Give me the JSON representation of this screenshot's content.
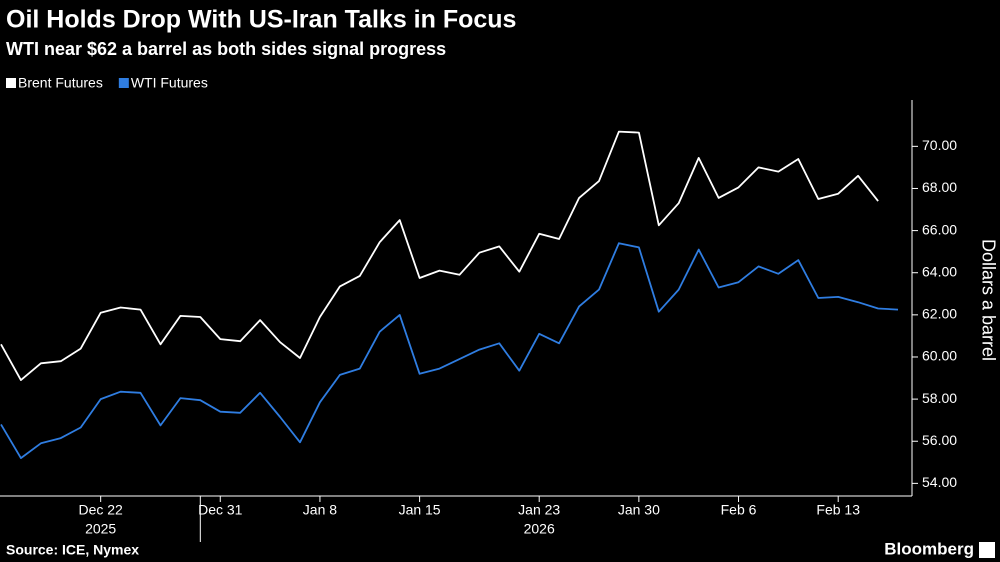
{
  "chart_data": {
    "type": "line",
    "title": "Oil Holds Drop With US-Iran Talks in Focus",
    "subtitle": "WTI near $62 a barrel as both sides signal progress",
    "y_axis_label": "Dollars a barrel",
    "source": "Source: ICE, Nymex",
    "brand": "Bloomberg",
    "year_labels": [
      "2025",
      "2026"
    ],
    "categories": [
      null,
      null,
      null,
      null,
      null,
      "Dec 22",
      null,
      null,
      null,
      null,
      null,
      "Dec 31",
      null,
      null,
      null,
      null,
      "Jan 8",
      null,
      null,
      null,
      null,
      "Jan 15",
      null,
      null,
      null,
      null,
      null,
      "Jan 23",
      null,
      null,
      null,
      null,
      "Jan 30",
      null,
      null,
      null,
      null,
      "Feb 6",
      null,
      null,
      null,
      null,
      "Feb 13",
      null,
      null,
      null
    ],
    "series": [
      {
        "name": "Brent Futures",
        "color": "#ffffff",
        "values": [
          60.6,
          58.9,
          59.7,
          59.8,
          60.4,
          62.1,
          62.35,
          62.25,
          60.6,
          61.95,
          61.9,
          60.85,
          60.75,
          61.75,
          60.7,
          59.95,
          61.9,
          63.35,
          63.85,
          65.45,
          66.5,
          63.75,
          64.1,
          63.9,
          64.95,
          65.25,
          64.05,
          65.85,
          65.6,
          67.55,
          68.35,
          70.7,
          70.65,
          66.25,
          67.3,
          69.45,
          67.55,
          68.05,
          69.0,
          68.8,
          69.4,
          67.5,
          67.75,
          68.6,
          67.4,
          null
        ]
      },
      {
        "name": "WTI Futures",
        "color": "#2f7de1",
        "values": [
          56.8,
          55.2,
          55.9,
          56.15,
          56.65,
          58.0,
          58.35,
          58.3,
          56.75,
          58.05,
          57.95,
          57.4,
          57.35,
          58.3,
          57.15,
          55.95,
          57.85,
          59.15,
          59.45,
          61.2,
          62.0,
          59.2,
          59.45,
          59.9,
          60.35,
          60.65,
          59.35,
          61.1,
          60.65,
          62.4,
          63.2,
          65.4,
          65.2,
          62.15,
          63.2,
          65.1,
          63.3,
          63.55,
          64.3,
          63.95,
          64.6,
          62.8,
          62.85,
          62.6,
          62.3,
          62.25
        ]
      }
    ],
    "ylim": [
      53.4,
      72.2
    ],
    "yticks": [
      {
        "value": 54,
        "label": "54.00"
      },
      {
        "value": 56,
        "label": "56.00"
      },
      {
        "value": 58,
        "label": "58.00"
      },
      {
        "value": 60,
        "label": "60.00"
      },
      {
        "value": 62,
        "label": "62.00"
      },
      {
        "value": 64,
        "label": "64.00"
      },
      {
        "value": 66,
        "label": "66.00"
      },
      {
        "value": 68,
        "label": "68.00"
      },
      {
        "value": 70,
        "label": "70.00"
      }
    ],
    "grid": false
  }
}
